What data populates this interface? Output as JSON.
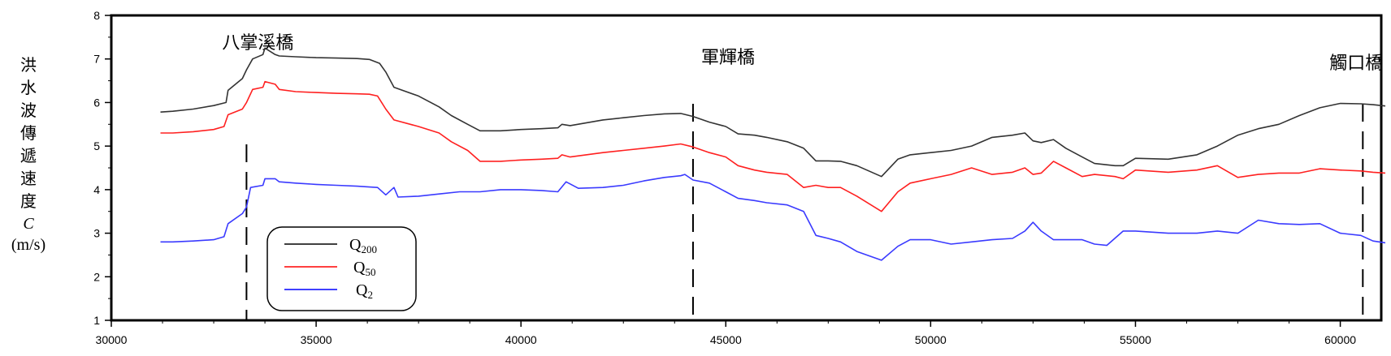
{
  "chart_data": {
    "type": "line",
    "ylabel_chars": [
      "洪",
      "水",
      "波",
      "傳",
      "遞",
      "速",
      "度"
    ],
    "ylabel_symbol": "C",
    "ylabel_unit": "(m/s)",
    "xlim": [
      30000,
      61000
    ],
    "ylim": [
      1,
      8
    ],
    "x_ticks": [
      30000,
      35000,
      40000,
      45000,
      50000,
      55000,
      60000
    ],
    "y_ticks": [
      1,
      2,
      3,
      4,
      5,
      6,
      7,
      8
    ],
    "bridges": [
      {
        "name": "八掌溪橋",
        "x": 33300
      },
      {
        "name": "軍輝橋",
        "x": 44200
      },
      {
        "name": "觸口橋",
        "x": 60550
      }
    ],
    "legend": [
      {
        "base": "Q",
        "sub": "200",
        "color": "#000000"
      },
      {
        "base": "Q",
        "sub": "50",
        "color": "#ff0000"
      },
      {
        "base": "Q",
        "sub": "2",
        "color": "#0000ff"
      }
    ],
    "series": [
      {
        "color": "#333333",
        "points": [
          [
            31200,
            5.78
          ],
          [
            31500,
            5.8
          ],
          [
            32000,
            5.85
          ],
          [
            32500,
            5.93
          ],
          [
            32800,
            6.0
          ],
          [
            32850,
            6.28
          ],
          [
            33200,
            6.55
          ],
          [
            33300,
            6.75
          ],
          [
            33450,
            7.0
          ],
          [
            33700,
            7.1
          ],
          [
            33750,
            7.25
          ],
          [
            34000,
            7.1
          ],
          [
            34100,
            7.07
          ],
          [
            34500,
            7.05
          ],
          [
            35000,
            7.03
          ],
          [
            35500,
            7.02
          ],
          [
            36000,
            7.01
          ],
          [
            36300,
            6.99
          ],
          [
            36550,
            6.9
          ],
          [
            36700,
            6.7
          ],
          [
            36900,
            6.35
          ],
          [
            37500,
            6.15
          ],
          [
            38000,
            5.9
          ],
          [
            38300,
            5.7
          ],
          [
            38700,
            5.5
          ],
          [
            39000,
            5.35
          ],
          [
            39500,
            5.35
          ],
          [
            40000,
            5.38
          ],
          [
            40500,
            5.4
          ],
          [
            40900,
            5.42
          ],
          [
            41000,
            5.5
          ],
          [
            41200,
            5.47
          ],
          [
            42000,
            5.6
          ],
          [
            42500,
            5.65
          ],
          [
            43000,
            5.7
          ],
          [
            43500,
            5.74
          ],
          [
            43900,
            5.75
          ],
          [
            44200,
            5.68
          ],
          [
            44600,
            5.55
          ],
          [
            45000,
            5.45
          ],
          [
            45300,
            5.28
          ],
          [
            45700,
            5.25
          ],
          [
            46000,
            5.2
          ],
          [
            46500,
            5.1
          ],
          [
            46900,
            4.95
          ],
          [
            47200,
            4.66
          ],
          [
            47500,
            4.66
          ],
          [
            47800,
            4.65
          ],
          [
            48200,
            4.55
          ],
          [
            48800,
            4.3
          ],
          [
            49200,
            4.7
          ],
          [
            49500,
            4.8
          ],
          [
            50000,
            4.85
          ],
          [
            50500,
            4.9
          ],
          [
            51000,
            5.0
          ],
          [
            51500,
            5.2
          ],
          [
            52000,
            5.25
          ],
          [
            52300,
            5.3
          ],
          [
            52500,
            5.12
          ],
          [
            52700,
            5.08
          ],
          [
            53000,
            5.15
          ],
          [
            53300,
            4.95
          ],
          [
            53700,
            4.75
          ],
          [
            54000,
            4.6
          ],
          [
            54500,
            4.55
          ],
          [
            54700,
            4.55
          ],
          [
            55000,
            4.72
          ],
          [
            55800,
            4.7
          ],
          [
            56500,
            4.8
          ],
          [
            57000,
            5.0
          ],
          [
            57500,
            5.25
          ],
          [
            58000,
            5.4
          ],
          [
            58500,
            5.5
          ],
          [
            59000,
            5.7
          ],
          [
            59500,
            5.88
          ],
          [
            60000,
            5.98
          ],
          [
            60500,
            5.97
          ],
          [
            60800,
            5.95
          ],
          [
            61100,
            5.92
          ]
        ]
      },
      {
        "color": "#ff2020",
        "points": [
          [
            31200,
            5.3
          ],
          [
            31500,
            5.3
          ],
          [
            32000,
            5.33
          ],
          [
            32500,
            5.38
          ],
          [
            32750,
            5.45
          ],
          [
            32850,
            5.72
          ],
          [
            33200,
            5.85
          ],
          [
            33300,
            6.0
          ],
          [
            33450,
            6.3
          ],
          [
            33700,
            6.35
          ],
          [
            33750,
            6.48
          ],
          [
            34000,
            6.42
          ],
          [
            34100,
            6.3
          ],
          [
            34500,
            6.25
          ],
          [
            35000,
            6.23
          ],
          [
            35500,
            6.21
          ],
          [
            36000,
            6.2
          ],
          [
            36300,
            6.19
          ],
          [
            36500,
            6.15
          ],
          [
            36700,
            5.85
          ],
          [
            36900,
            5.6
          ],
          [
            37500,
            5.45
          ],
          [
            38000,
            5.3
          ],
          [
            38300,
            5.1
          ],
          [
            38700,
            4.9
          ],
          [
            39000,
            4.65
          ],
          [
            39500,
            4.65
          ],
          [
            40000,
            4.68
          ],
          [
            40500,
            4.7
          ],
          [
            40900,
            4.72
          ],
          [
            41000,
            4.8
          ],
          [
            41200,
            4.75
          ],
          [
            42000,
            4.85
          ],
          [
            42500,
            4.9
          ],
          [
            43000,
            4.95
          ],
          [
            43500,
            5.0
          ],
          [
            43900,
            5.05
          ],
          [
            44200,
            4.98
          ],
          [
            44600,
            4.85
          ],
          [
            45000,
            4.75
          ],
          [
            45300,
            4.55
          ],
          [
            45700,
            4.45
          ],
          [
            46000,
            4.4
          ],
          [
            46500,
            4.35
          ],
          [
            46900,
            4.05
          ],
          [
            47200,
            4.1
          ],
          [
            47500,
            4.05
          ],
          [
            47800,
            4.05
          ],
          [
            48200,
            3.85
          ],
          [
            48800,
            3.5
          ],
          [
            49200,
            3.95
          ],
          [
            49500,
            4.15
          ],
          [
            50000,
            4.25
          ],
          [
            50500,
            4.35
          ],
          [
            51000,
            4.5
          ],
          [
            51500,
            4.35
          ],
          [
            52000,
            4.4
          ],
          [
            52300,
            4.5
          ],
          [
            52500,
            4.35
          ],
          [
            52700,
            4.38
          ],
          [
            53000,
            4.65
          ],
          [
            53300,
            4.5
          ],
          [
            53700,
            4.3
          ],
          [
            54000,
            4.35
          ],
          [
            54500,
            4.3
          ],
          [
            54700,
            4.25
          ],
          [
            55000,
            4.45
          ],
          [
            55800,
            4.4
          ],
          [
            56500,
            4.45
          ],
          [
            57000,
            4.55
          ],
          [
            57500,
            4.28
          ],
          [
            58000,
            4.35
          ],
          [
            58500,
            4.38
          ],
          [
            59000,
            4.38
          ],
          [
            59500,
            4.48
          ],
          [
            60000,
            4.45
          ],
          [
            60500,
            4.43
          ],
          [
            60800,
            4.4
          ],
          [
            61100,
            4.38
          ]
        ]
      },
      {
        "color": "#3a3aff",
        "points": [
          [
            31200,
            2.8
          ],
          [
            31500,
            2.8
          ],
          [
            32000,
            2.82
          ],
          [
            32500,
            2.85
          ],
          [
            32750,
            2.92
          ],
          [
            32850,
            3.22
          ],
          [
            33200,
            3.45
          ],
          [
            33300,
            3.6
          ],
          [
            33400,
            4.05
          ],
          [
            33700,
            4.1
          ],
          [
            33750,
            4.25
          ],
          [
            34000,
            4.25
          ],
          [
            34100,
            4.18
          ],
          [
            34500,
            4.15
          ],
          [
            35000,
            4.12
          ],
          [
            35500,
            4.1
          ],
          [
            36000,
            4.08
          ],
          [
            36300,
            4.06
          ],
          [
            36500,
            4.05
          ],
          [
            36700,
            3.88
          ],
          [
            36900,
            4.05
          ],
          [
            37000,
            3.83
          ],
          [
            37500,
            3.85
          ],
          [
            38000,
            3.9
          ],
          [
            38500,
            3.95
          ],
          [
            39000,
            3.95
          ],
          [
            39500,
            4.0
          ],
          [
            40000,
            4.0
          ],
          [
            40500,
            3.98
          ],
          [
            40900,
            3.95
          ],
          [
            41100,
            4.18
          ],
          [
            41400,
            4.03
          ],
          [
            42000,
            4.05
          ],
          [
            42500,
            4.1
          ],
          [
            43000,
            4.2
          ],
          [
            43500,
            4.28
          ],
          [
            43900,
            4.32
          ],
          [
            44000,
            4.35
          ],
          [
            44200,
            4.22
          ],
          [
            44600,
            4.15
          ],
          [
            45000,
            3.95
          ],
          [
            45300,
            3.8
          ],
          [
            45700,
            3.75
          ],
          [
            46000,
            3.7
          ],
          [
            46500,
            3.65
          ],
          [
            46900,
            3.5
          ],
          [
            47200,
            2.95
          ],
          [
            47500,
            2.88
          ],
          [
            47800,
            2.8
          ],
          [
            48200,
            2.58
          ],
          [
            48800,
            2.38
          ],
          [
            49200,
            2.7
          ],
          [
            49500,
            2.85
          ],
          [
            50000,
            2.85
          ],
          [
            50500,
            2.75
          ],
          [
            51000,
            2.8
          ],
          [
            51500,
            2.85
          ],
          [
            52000,
            2.88
          ],
          [
            52300,
            3.05
          ],
          [
            52500,
            3.25
          ],
          [
            52700,
            3.05
          ],
          [
            53000,
            2.85
          ],
          [
            53300,
            2.85
          ],
          [
            53700,
            2.85
          ],
          [
            54000,
            2.75
          ],
          [
            54300,
            2.72
          ],
          [
            54700,
            3.05
          ],
          [
            55000,
            3.05
          ],
          [
            55800,
            3.0
          ],
          [
            56500,
            3.0
          ],
          [
            57000,
            3.05
          ],
          [
            57500,
            3.0
          ],
          [
            58000,
            3.3
          ],
          [
            58500,
            3.22
          ],
          [
            59000,
            3.2
          ],
          [
            59500,
            3.22
          ],
          [
            60000,
            3.0
          ],
          [
            60500,
            2.95
          ],
          [
            60800,
            2.82
          ],
          [
            61100,
            2.78
          ]
        ]
      }
    ]
  }
}
